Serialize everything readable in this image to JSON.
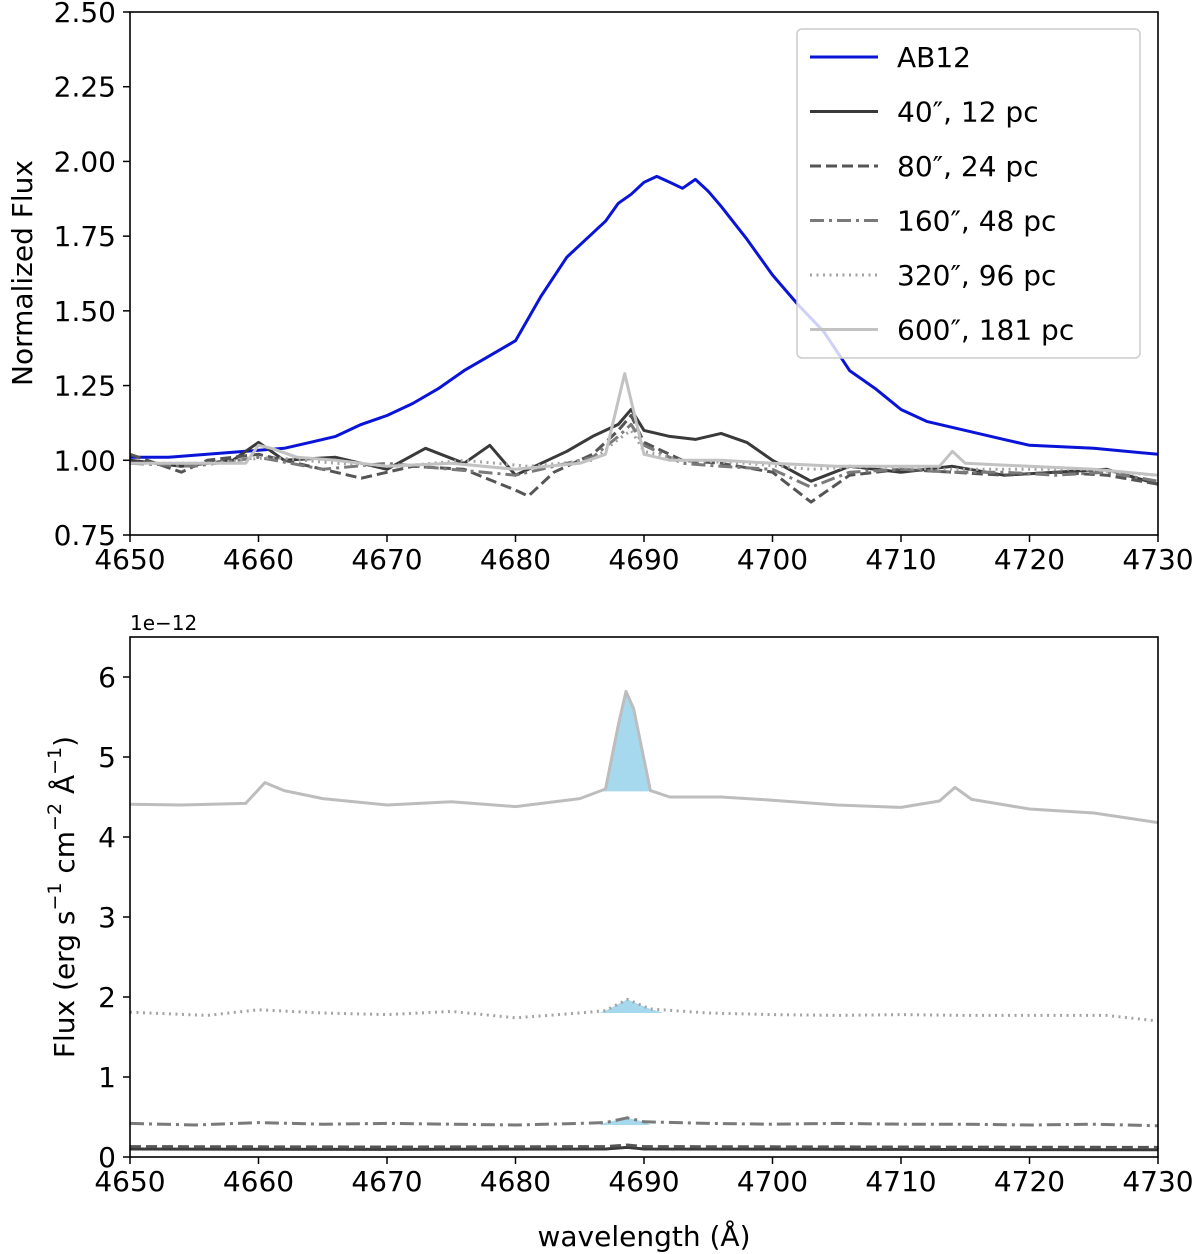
{
  "chart_data": [
    {
      "type": "line",
      "xlabel": "",
      "ylabel": "Normalized Flux",
      "xlim": [
        4650,
        4730
      ],
      "ylim": [
        0.75,
        2.5
      ],
      "xticks": [
        "4650",
        "4660",
        "4670",
        "4680",
        "4690",
        "4700",
        "4710",
        "4720",
        "4730"
      ],
      "yticks": [
        "0.75",
        "1.00",
        "1.25",
        "1.50",
        "1.75",
        "2.00",
        "2.25",
        "2.50"
      ],
      "legend_position": "top-right",
      "grid": false,
      "series": [
        {
          "name": "AB12",
          "color": "#0a14d8",
          "style": "solid",
          "x": [
            4650,
            4653,
            4656,
            4659,
            4662,
            4664,
            4666,
            4668,
            4670,
            4672,
            4674,
            4676,
            4678,
            4680,
            4682,
            4684,
            4686,
            4687,
            4688,
            4689,
            4690,
            4691,
            4692,
            4693,
            4694,
            4695,
            4696,
            4698,
            4700,
            4702,
            4704,
            4706,
            4708,
            4710,
            4712,
            4715,
            4718,
            4720,
            4725,
            4730
          ],
          "y": [
            1.01,
            1.01,
            1.02,
            1.03,
            1.04,
            1.06,
            1.08,
            1.12,
            1.15,
            1.19,
            1.24,
            1.3,
            1.35,
            1.4,
            1.55,
            1.68,
            1.76,
            1.8,
            1.86,
            1.89,
            1.93,
            1.95,
            1.93,
            1.91,
            1.94,
            1.9,
            1.85,
            1.74,
            1.62,
            1.52,
            1.43,
            1.3,
            1.24,
            1.17,
            1.13,
            1.1,
            1.07,
            1.05,
            1.04,
            1.02
          ]
        },
        {
          "name": "40″, 12 pc",
          "color": "#3a3a3a",
          "style": "solid",
          "x": [
            4650,
            4654,
            4658,
            4660,
            4662,
            4666,
            4670,
            4673,
            4676,
            4678,
            4680,
            4682,
            4684,
            4686,
            4688,
            4689,
            4690,
            4692,
            4694,
            4696,
            4698,
            4700,
            4703,
            4706,
            4710,
            4714,
            4718,
            4722,
            4726,
            4730
          ],
          "y": [
            1.0,
            0.98,
            1.0,
            1.06,
            1.0,
            1.01,
            0.97,
            1.04,
            0.99,
            1.05,
            0.95,
            0.99,
            1.03,
            1.08,
            1.12,
            1.17,
            1.1,
            1.08,
            1.07,
            1.09,
            1.06,
            1.0,
            0.93,
            0.98,
            0.96,
            0.98,
            0.95,
            0.96,
            0.97,
            0.92
          ]
        },
        {
          "name": "80″, 24 pc",
          "color": "#555555",
          "style": "dashed",
          "x": [
            4650,
            4654,
            4656,
            4660,
            4664,
            4668,
            4672,
            4676,
            4680,
            4681,
            4683,
            4686,
            4688,
            4689,
            4690,
            4693,
            4696,
            4700,
            4703,
            4706,
            4710,
            4714,
            4718,
            4722,
            4726,
            4730
          ],
          "y": [
            1.02,
            0.96,
            1.0,
            1.02,
            0.98,
            0.94,
            0.98,
            0.97,
            0.9,
            0.88,
            0.96,
            1.02,
            1.1,
            1.15,
            1.06,
            1.0,
            0.99,
            0.96,
            0.86,
            0.95,
            0.97,
            0.96,
            0.95,
            0.96,
            0.95,
            0.92
          ]
        },
        {
          "name": "160″, 48 pc",
          "color": "#7a7a7a",
          "style": "dashdot",
          "x": [
            4650,
            4655,
            4660,
            4665,
            4670,
            4675,
            4680,
            4683,
            4686,
            4688,
            4689,
            4690,
            4693,
            4696,
            4700,
            4703,
            4706,
            4710,
            4714,
            4718,
            4722,
            4726,
            4730
          ],
          "y": [
            0.99,
            0.98,
            1.01,
            0.97,
            0.99,
            0.97,
            0.95,
            0.98,
            1.01,
            1.08,
            1.12,
            1.05,
            0.99,
            0.98,
            0.97,
            0.91,
            0.96,
            0.97,
            0.96,
            0.96,
            0.95,
            0.96,
            0.93
          ]
        },
        {
          "name": "320″, 96 pc",
          "color": "#a3a3a3",
          "style": "dotted",
          "x": [
            4650,
            4656,
            4661,
            4666,
            4671,
            4676,
            4681,
            4686,
            4688,
            4689,
            4690,
            4693,
            4698,
            4703,
            4708,
            4713,
            4718,
            4724,
            4730
          ],
          "y": [
            0.99,
            0.99,
            1.01,
            0.99,
            0.98,
            1.0,
            0.98,
            1.0,
            1.07,
            1.1,
            1.03,
            1.0,
            0.99,
            0.97,
            0.98,
            0.97,
            0.97,
            0.97,
            0.95
          ]
        },
        {
          "name": "600″, 181 pc",
          "color": "#c2c2c2",
          "style": "solid",
          "x": [
            4650,
            4655,
            4659,
            4660,
            4661,
            4663,
            4666,
            4670,
            4675,
            4680,
            4685,
            4687,
            4688,
            4688.5,
            4689,
            4690,
            4692,
            4696,
            4700,
            4705,
            4710,
            4713,
            4714,
            4715,
            4720,
            4725,
            4730
          ],
          "y": [
            0.99,
            0.99,
            0.99,
            1.05,
            1.04,
            1.01,
            1.0,
            0.98,
            0.99,
            0.97,
            0.99,
            1.02,
            1.2,
            1.29,
            1.2,
            1.02,
            1.0,
            1.0,
            0.99,
            0.98,
            0.98,
            0.98,
            1.03,
            0.99,
            0.98,
            0.97,
            0.95
          ]
        }
      ]
    },
    {
      "type": "line",
      "xlabel": "wavelength (Å)",
      "ylabel_parts": [
        "Flux (erg s",
        "−1",
        " cm",
        "−2",
        " Å",
        "−1",
        ")"
      ],
      "offset_text": "1e−12",
      "xlim": [
        4650,
        4730
      ],
      "ylim": [
        0,
        6.5
      ],
      "xticks": [
        "4650",
        "4660",
        "4670",
        "4680",
        "4690",
        "4700",
        "4710",
        "4720",
        "4730"
      ],
      "yticks": [
        "0",
        "1",
        "2",
        "3",
        "4",
        "5",
        "6"
      ],
      "grid": false,
      "fill_color": "#a6d8ee",
      "series": [
        {
          "name": "40″, 12 pc",
          "color": "#3a3a3a",
          "style": "solid",
          "x": [
            4650,
            4670,
            4687,
            4688.7,
            4690,
            4710,
            4730
          ],
          "y": [
            0.1,
            0.095,
            0.1,
            0.12,
            0.1,
            0.095,
            0.09
          ],
          "fill": false
        },
        {
          "name": "80″, 24 pc",
          "color": "#555555",
          "style": "dashed",
          "x": [
            4650,
            4670,
            4687,
            4688.7,
            4690,
            4710,
            4730
          ],
          "y": [
            0.13,
            0.125,
            0.13,
            0.15,
            0.13,
            0.125,
            0.12
          ],
          "fill": false
        },
        {
          "name": "160″, 48 pc",
          "color": "#7a7a7a",
          "style": "dashdot",
          "x": [
            4650,
            4655,
            4660,
            4665,
            4670,
            4675,
            4680,
            4685,
            4687,
            4688.7,
            4690,
            4695,
            4700,
            4705,
            4710,
            4715,
            4720,
            4725,
            4730
          ],
          "y": [
            0.42,
            0.4,
            0.43,
            0.41,
            0.42,
            0.41,
            0.4,
            0.42,
            0.43,
            0.49,
            0.44,
            0.42,
            0.41,
            0.42,
            0.41,
            0.41,
            0.4,
            0.41,
            0.39
          ],
          "fill": true,
          "fill_base": 0.4,
          "fill_range": [
            4686.5,
            4690.5
          ]
        },
        {
          "name": "320″, 96 pc",
          "color": "#a3a3a3",
          "style": "dotted",
          "x": [
            4650,
            4656,
            4660,
            4665,
            4670,
            4675,
            4680,
            4685,
            4687,
            4688.7,
            4690.5,
            4695,
            4700,
            4705,
            4710,
            4715,
            4720,
            4726,
            4730
          ],
          "y": [
            1.81,
            1.77,
            1.84,
            1.8,
            1.78,
            1.82,
            1.74,
            1.8,
            1.83,
            1.97,
            1.85,
            1.8,
            1.78,
            1.77,
            1.78,
            1.77,
            1.77,
            1.77,
            1.7
          ],
          "fill": true,
          "fill_base": 1.8,
          "fill_range": [
            4686.5,
            4691.5
          ]
        },
        {
          "name": "600″, 181 pc",
          "color": "#bdbdbd",
          "style": "solid",
          "x": [
            4650,
            4654,
            4659,
            4660.5,
            4662,
            4665,
            4670,
            4675,
            4680,
            4685,
            4687,
            4688,
            4688.6,
            4689.2,
            4690.5,
            4692,
            4696,
            4700,
            4705,
            4710,
            4713,
            4714.2,
            4715.5,
            4720,
            4725,
            4730
          ],
          "y": [
            4.41,
            4.4,
            4.42,
            4.68,
            4.58,
            4.48,
            4.4,
            4.44,
            4.38,
            4.48,
            4.6,
            5.4,
            5.82,
            5.6,
            4.58,
            4.5,
            4.5,
            4.46,
            4.4,
            4.37,
            4.45,
            4.62,
            4.47,
            4.35,
            4.3,
            4.18
          ],
          "fill": true,
          "fill_base": 4.57,
          "fill_range": [
            4686.5,
            4691.2
          ]
        }
      ]
    }
  ]
}
